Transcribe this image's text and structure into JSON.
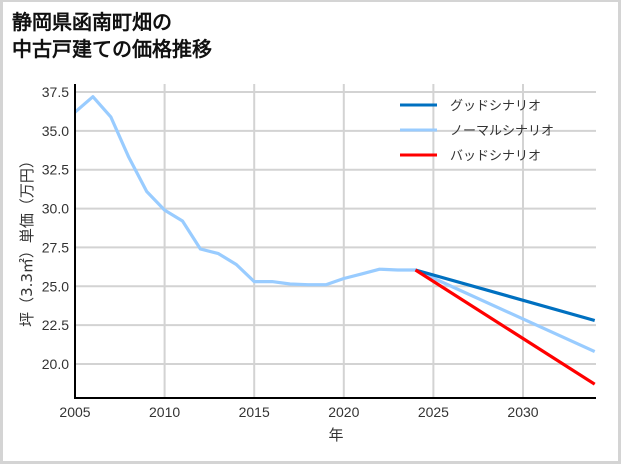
{
  "title": {
    "line1": "静岡県函南町畑の",
    "line2": "中古戸建ての価格推移"
  },
  "colors": {
    "good": "#0070c0",
    "normal": "#99ccff",
    "bad": "#ff0000",
    "grid": "#d3d3d3",
    "axis": "#000000",
    "border": "#d4d4d4"
  },
  "chart_data": {
    "type": "line",
    "title": "静岡県函南町畑の中古戸建ての価格推移",
    "xlabel": "年",
    "ylabel": "坪（3.3㎡）単価（万円）",
    "xlim": [
      2005,
      2034
    ],
    "ylim": [
      17.8,
      38.0
    ],
    "grid": true,
    "legend_position": "upper right",
    "x_ticks": [
      "2005",
      "2010",
      "2015",
      "2020",
      "2025",
      "2030"
    ],
    "y_ticks": [
      "20.0",
      "22.5",
      "25.0",
      "27.5",
      "30.0",
      "32.5",
      "35.0",
      "37.5"
    ],
    "series": [
      {
        "name": "グッドシナリオ",
        "color": "#0070c0",
        "x": [
          2024,
          2034
        ],
        "values": [
          26.05,
          22.8
        ]
      },
      {
        "name": "ノーマルシナリオ",
        "color": "#99ccff",
        "x": [
          2005,
          2006,
          2007,
          2008,
          2009,
          2010,
          2011,
          2012,
          2013,
          2014,
          2015,
          2016,
          2017,
          2018,
          2019,
          2020,
          2021,
          2022,
          2023,
          2024,
          2034
        ],
        "values": [
          36.2,
          37.2,
          35.9,
          33.3,
          31.1,
          29.9,
          29.2,
          27.4,
          27.1,
          26.4,
          25.3,
          25.3,
          25.15,
          25.1,
          25.1,
          25.5,
          25.8,
          26.1,
          26.05,
          26.05,
          20.8
        ]
      },
      {
        "name": "バッドシナリオ",
        "color": "#ff0000",
        "x": [
          2024,
          2034
        ],
        "values": [
          26.05,
          18.7
        ]
      }
    ]
  }
}
